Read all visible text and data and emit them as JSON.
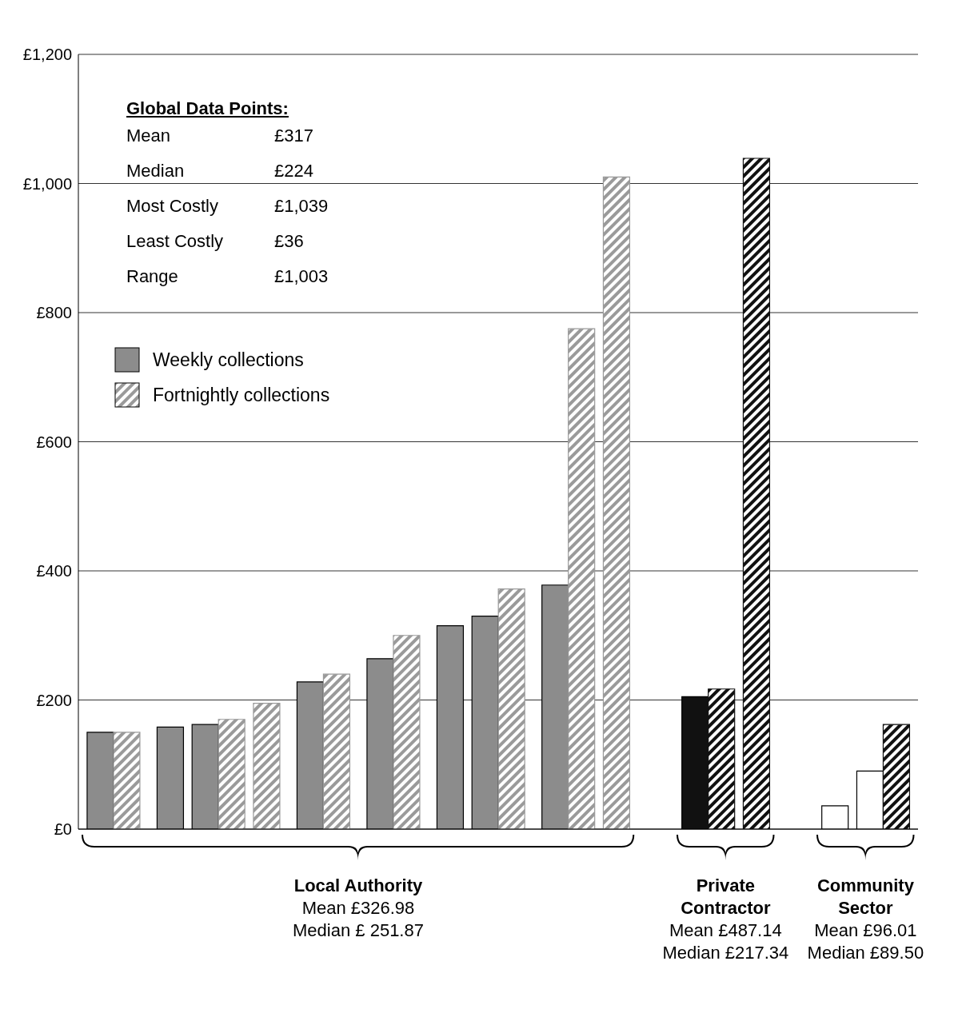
{
  "chart_data": {
    "type": "bar",
    "categories": [
      null,
      null,
      null,
      null,
      null,
      null,
      null,
      null,
      null,
      null,
      null,
      null,
      null,
      null,
      null,
      null,
      null,
      null,
      null,
      null,
      null,
      null,
      null,
      null
    ],
    "series": [
      {
        "name": "Weekly collections",
        "color": "#8c8c8c",
        "values": [
          150,
          null,
          158,
          162,
          null,
          null,
          228,
          null,
          264,
          null,
          315,
          330,
          null,
          378,
          null,
          null,
          null,
          205,
          null,
          null,
          null,
          36,
          90,
          null
        ],
        "colors": [
          "#8c8c8c",
          "#8c8c8c",
          "#8c8c8c",
          "#8c8c8c",
          "#8c8c8c",
          "#8c8c8c",
          "#8c8c8c",
          "#8c8c8c",
          "#8c8c8c",
          "#8c8c8c",
          "#8c8c8c",
          "#8c8c8c",
          "#8c8c8c",
          "#8c8c8c",
          "#8c8c8c",
          "#8c8c8c",
          "#8c8c8c",
          "#111111",
          "#111111",
          "#111111",
          "#ffffff",
          "#ffffff",
          "#ffffff",
          "#ffffff"
        ]
      },
      {
        "name": "Fortnightly collections",
        "color": "#9a9a9a",
        "values": [
          null,
          150,
          null,
          null,
          170,
          195,
          null,
          240,
          null,
          300,
          null,
          null,
          372,
          null,
          775,
          1010,
          null,
          null,
          217,
          1039,
          null,
          null,
          null,
          162
        ],
        "colors": [
          "#9a9a9a",
          "#9a9a9a",
          "#9a9a9a",
          "#9a9a9a",
          "#9a9a9a",
          "#9a9a9a",
          "#9a9a9a",
          "#9a9a9a",
          "#9a9a9a",
          "#9a9a9a",
          "#9a9a9a",
          "#9a9a9a",
          "#9a9a9a",
          "#9a9a9a",
          "#9a9a9a",
          "#9a9a9a",
          "#111111",
          "#111111",
          "#111111",
          "#111111",
          "#111111",
          "#111111",
          "#111111",
          "#111111"
        ]
      }
    ],
    "ylim": [
      0,
      1200
    ],
    "yticks": [
      {
        "value": 0,
        "label": "£0"
      },
      {
        "value": 200,
        "label": "£200"
      },
      {
        "value": 400,
        "label": "£400"
      },
      {
        "value": 600,
        "label": "£600"
      },
      {
        "value": 800,
        "label": "£800"
      },
      {
        "value": 1000,
        "label": "£1,000"
      },
      {
        "value": 1200,
        "label": "£1,200"
      }
    ],
    "grid": "y",
    "legend": "top left",
    "annotations": [
      "Global Data Points:",
      "Mean",
      "£317",
      "Median",
      "£224",
      "Most Costly",
      "£1,039",
      "Least Costly",
      "£36",
      "Range",
      "£1,003",
      "Local Authority",
      "Mean £326.98",
      "Median £ 251.87",
      "Private Contractor",
      "Mean £487.14",
      "Median £217.34",
      "Community Sector",
      "Mean £96.01",
      "Median £89.50"
    ]
  }
}
